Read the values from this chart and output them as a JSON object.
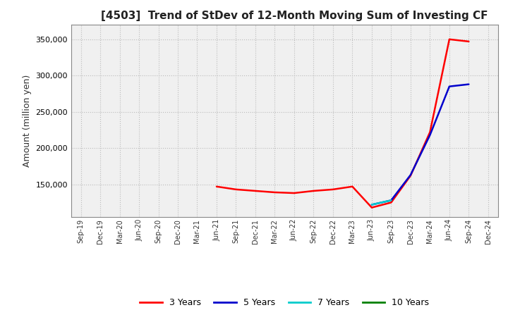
{
  "title": "[4503]  Trend of StDev of 12-Month Moving Sum of Investing CF",
  "ylabel": "Amount (million yen)",
  "background_color": "#ffffff",
  "plot_bg_color": "#f0f0f0",
  "grid_color": "#bbbbbb",
  "ylim": [
    105000,
    370000
  ],
  "yticks": [
    150000,
    200000,
    250000,
    300000,
    350000
  ],
  "series": {
    "3 Years": {
      "color": "#ff0000",
      "dates": [
        "Jun-21",
        "Sep-21",
        "Dec-21",
        "Mar-22",
        "Jun-22",
        "Sep-22",
        "Dec-22",
        "Mar-23",
        "Jun-23",
        "Sep-23",
        "Dec-23",
        "Mar-24",
        "Jun-24",
        "Sep-24"
      ],
      "values": [
        147000,
        143000,
        141000,
        139000,
        138000,
        141000,
        143000,
        147000,
        118000,
        125000,
        162000,
        222000,
        350000,
        347000
      ]
    },
    "5 Years": {
      "color": "#0000cc",
      "dates": [
        "Jun-23",
        "Sep-23",
        "Dec-23",
        "Mar-24",
        "Jun-24",
        "Sep-24"
      ],
      "values": [
        122000,
        128000,
        163000,
        218000,
        285000,
        288000
      ]
    },
    "7 Years": {
      "color": "#00cccc",
      "dates": [
        "Jun-23",
        "Sep-23"
      ],
      "values": [
        122000,
        128000
      ]
    },
    "10 Years": {
      "color": "#008000",
      "dates": [],
      "values": []
    }
  },
  "x_tick_labels": [
    "Sep-19",
    "Dec-19",
    "Mar-20",
    "Jun-20",
    "Sep-20",
    "Dec-20",
    "Mar-21",
    "Jun-21",
    "Sep-21",
    "Dec-21",
    "Mar-22",
    "Jun-22",
    "Sep-22",
    "Dec-22",
    "Mar-23",
    "Jun-23",
    "Sep-23",
    "Dec-23",
    "Mar-24",
    "Jun-24",
    "Sep-24",
    "Dec-24"
  ],
  "legend_labels": [
    "3 Years",
    "5 Years",
    "7 Years",
    "10 Years"
  ],
  "legend_colors": [
    "#ff0000",
    "#0000cc",
    "#00cccc",
    "#008000"
  ]
}
